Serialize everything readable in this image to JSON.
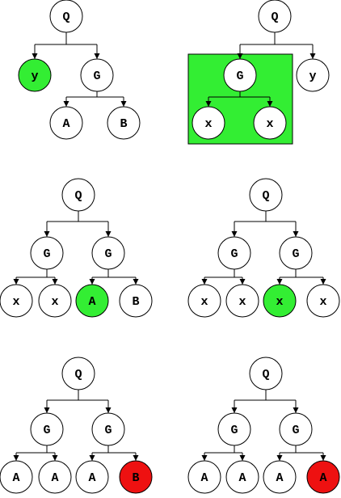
{
  "colors": {
    "node_fill": "#ffffff",
    "highlight_green": "#33ee33",
    "highlight_red": "#ee1111"
  },
  "diagrams": [
    {
      "id": "tree-1",
      "highlight_box": null,
      "nodes": [
        {
          "label": "Q",
          "fill": "white"
        },
        {
          "label": "y",
          "fill": "green"
        },
        {
          "label": "G",
          "fill": "white"
        },
        {
          "label": "A",
          "fill": "white"
        },
        {
          "label": "B",
          "fill": "white"
        }
      ]
    },
    {
      "id": "tree-2",
      "highlight_box": "green",
      "nodes": [
        {
          "label": "Q",
          "fill": "white"
        },
        {
          "label": "G",
          "fill": "white"
        },
        {
          "label": "y",
          "fill": "white"
        },
        {
          "label": "x",
          "fill": "white"
        },
        {
          "label": "x",
          "fill": "white"
        }
      ]
    },
    {
      "id": "tree-3",
      "highlight_box": null,
      "nodes": [
        {
          "label": "Q",
          "fill": "white"
        },
        {
          "label": "G",
          "fill": "white"
        },
        {
          "label": "G",
          "fill": "white"
        },
        {
          "label": "x",
          "fill": "white"
        },
        {
          "label": "x",
          "fill": "white"
        },
        {
          "label": "A",
          "fill": "green"
        },
        {
          "label": "B",
          "fill": "white"
        }
      ]
    },
    {
      "id": "tree-4",
      "highlight_box": null,
      "nodes": [
        {
          "label": "Q",
          "fill": "white"
        },
        {
          "label": "G",
          "fill": "white"
        },
        {
          "label": "G",
          "fill": "white"
        },
        {
          "label": "x",
          "fill": "white"
        },
        {
          "label": "x",
          "fill": "white"
        },
        {
          "label": "x",
          "fill": "green"
        },
        {
          "label": "x",
          "fill": "white"
        }
      ]
    },
    {
      "id": "tree-5",
      "highlight_box": null,
      "nodes": [
        {
          "label": "Q",
          "fill": "white"
        },
        {
          "label": "G",
          "fill": "white"
        },
        {
          "label": "G",
          "fill": "white"
        },
        {
          "label": "A",
          "fill": "white"
        },
        {
          "label": "A",
          "fill": "white"
        },
        {
          "label": "A",
          "fill": "white"
        },
        {
          "label": "B",
          "fill": "red"
        }
      ]
    },
    {
      "id": "tree-6",
      "highlight_box": null,
      "nodes": [
        {
          "label": "Q",
          "fill": "white"
        },
        {
          "label": "G",
          "fill": "white"
        },
        {
          "label": "G",
          "fill": "white"
        },
        {
          "label": "A",
          "fill": "white"
        },
        {
          "label": "A",
          "fill": "white"
        },
        {
          "label": "A",
          "fill": "white"
        },
        {
          "label": "A",
          "fill": "red"
        }
      ]
    }
  ]
}
